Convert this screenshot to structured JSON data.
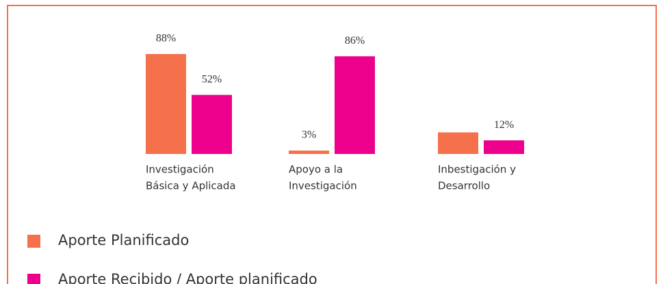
{
  "chart_data": {
    "type": "bar",
    "categories": [
      [
        "Investigación",
        "Básica y Aplicada"
      ],
      [
        "Apoyo a la",
        "Investigación"
      ],
      [
        "Inbestigación y",
        "Desarrollo"
      ]
    ],
    "series": [
      {
        "name": "Aporte Planificado",
        "color": "#f4714b",
        "values": [
          88,
          3,
          19
        ],
        "value_labels": [
          "88%",
          "3%",
          null
        ]
      },
      {
        "name": "Aporte Recibido / Aporte planificado",
        "color": "#ec008c",
        "values": [
          52,
          86,
          12
        ],
        "value_labels": [
          "52%",
          "86%",
          "12%"
        ]
      }
    ]
  }
}
